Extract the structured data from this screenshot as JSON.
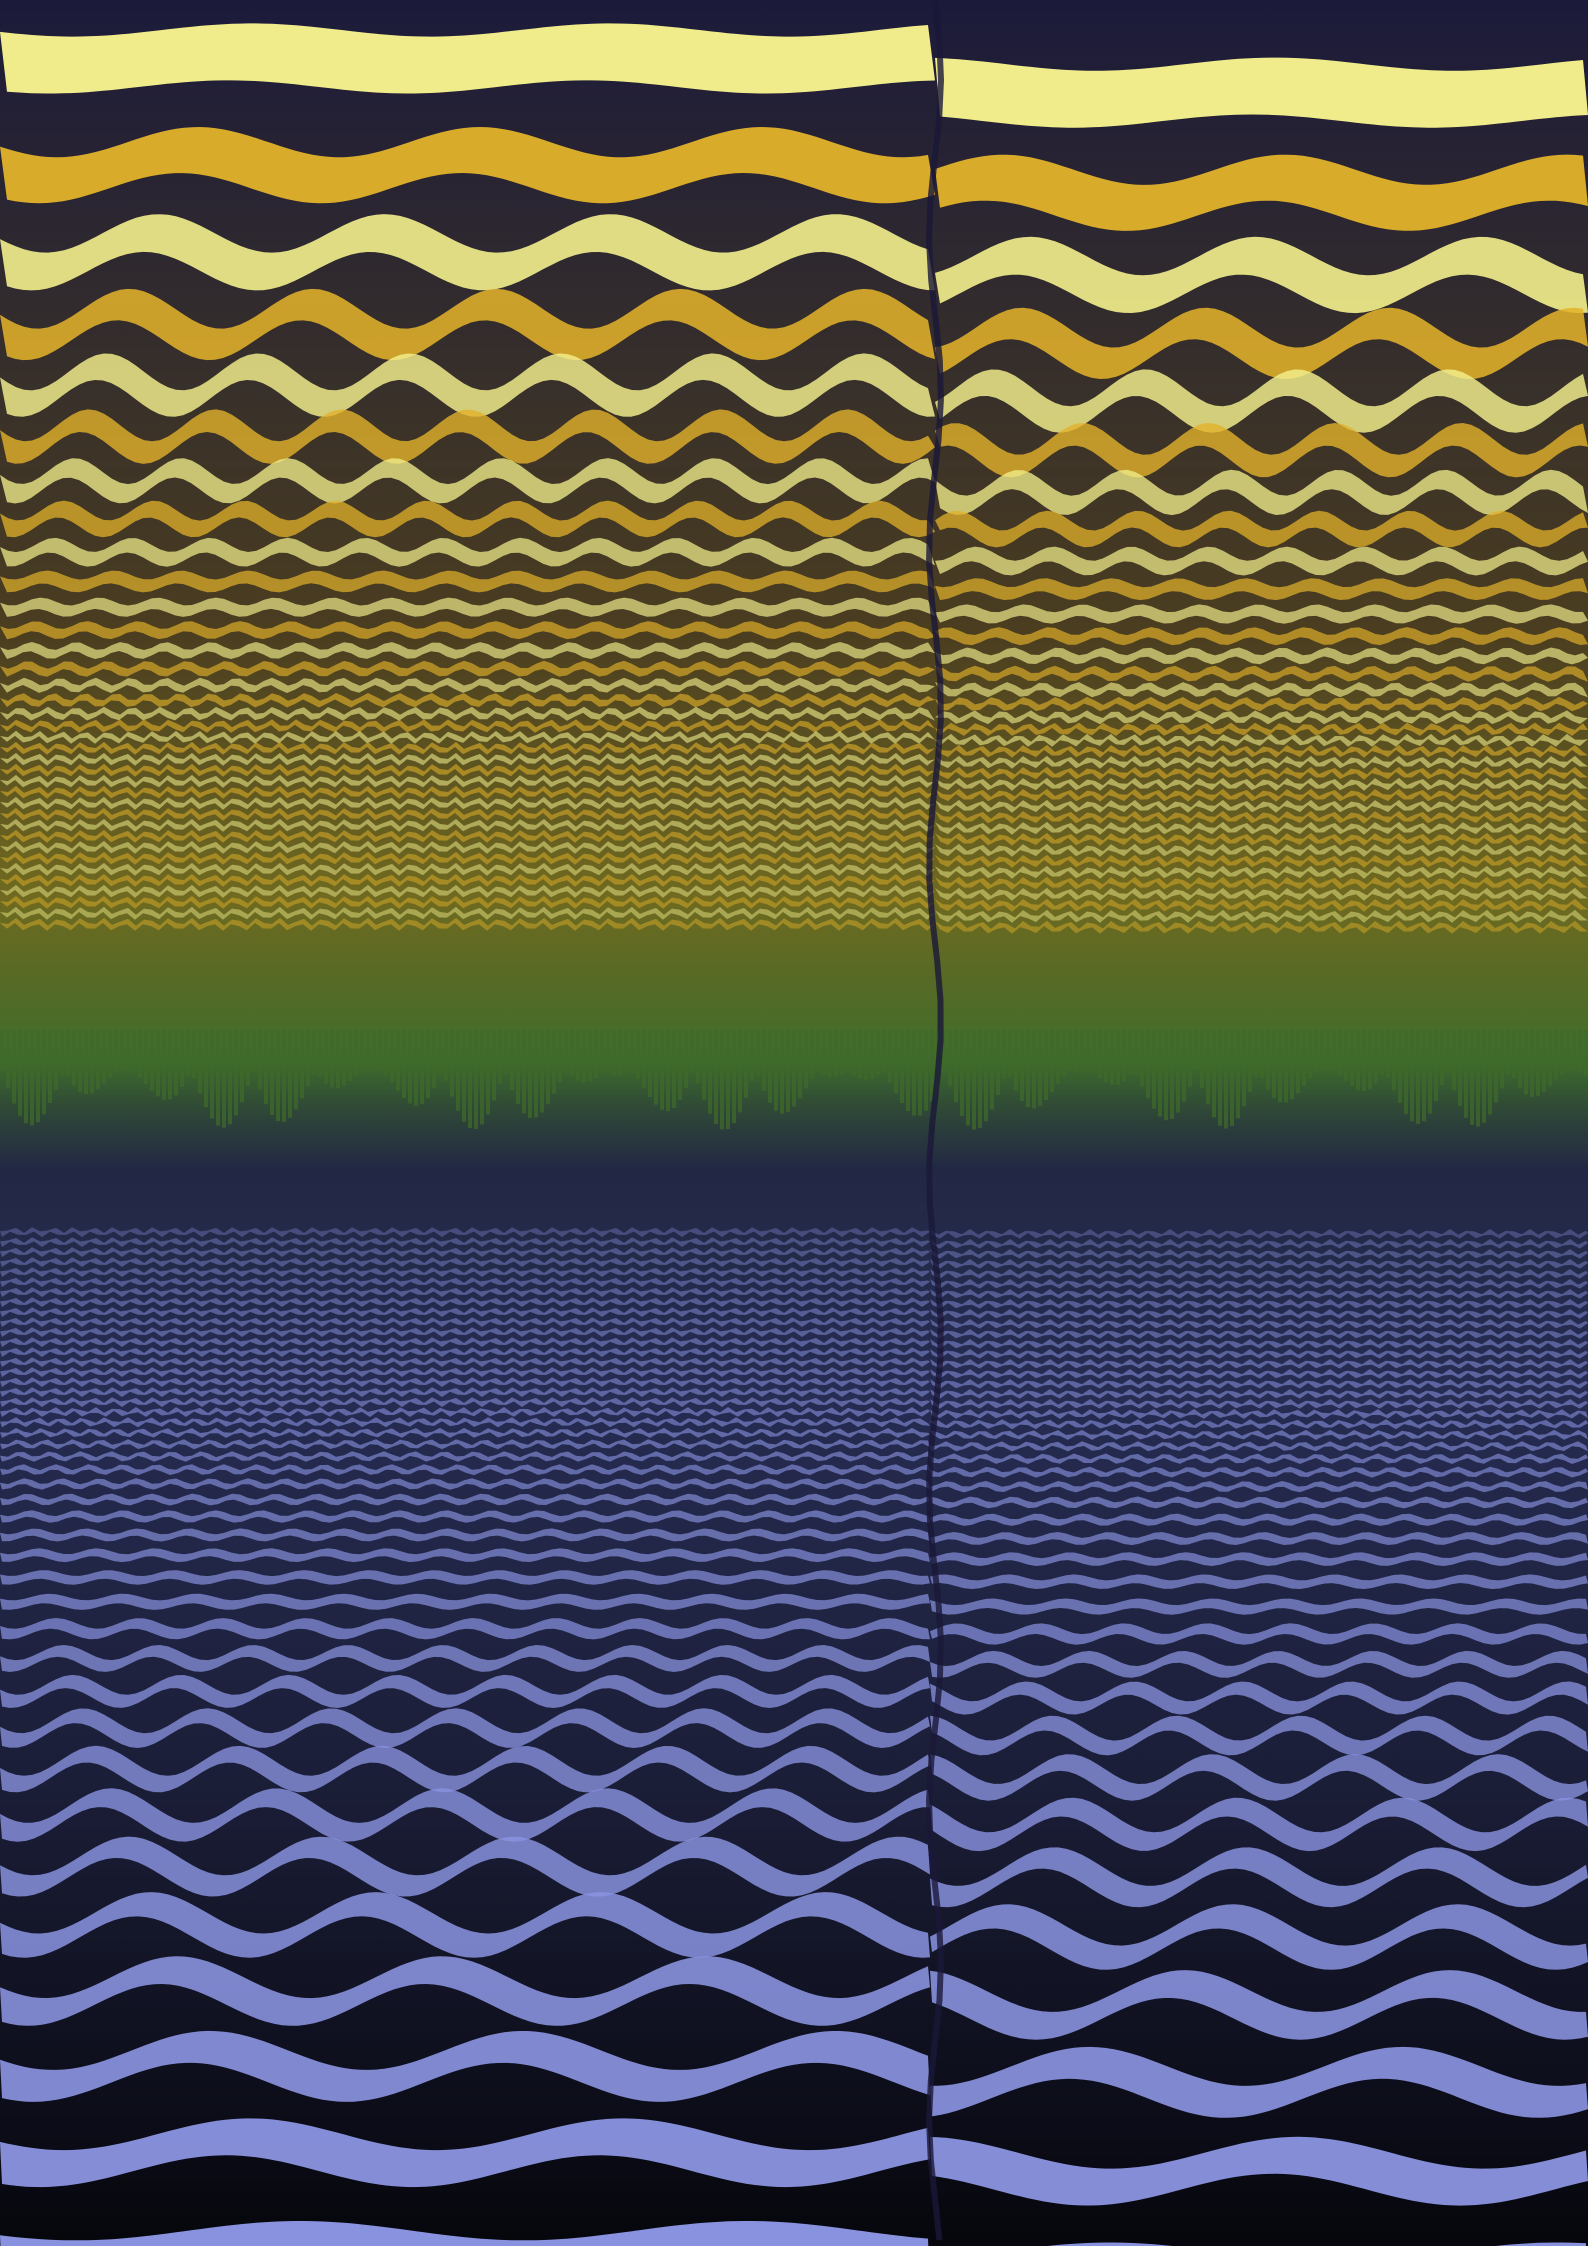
{
  "image": {
    "kind": "abstract-digital-artwork",
    "description_colors": {
      "upper_dark": "#1a1838",
      "upper_gold": "#e2b22a",
      "upper_pale": "#f2ee8c",
      "middle_green": "#3f6a2a",
      "middle_olive": "#7a7022",
      "lower_navy": "#232a48",
      "lower_periwinkle": "#8a93e0",
      "lower_black": "#07070c"
    },
    "motifs": [
      "horizontal-wavy-stripes",
      "vertical-seam",
      "gradient-to-green-band",
      "blue-stripes-lower-half"
    ]
  }
}
